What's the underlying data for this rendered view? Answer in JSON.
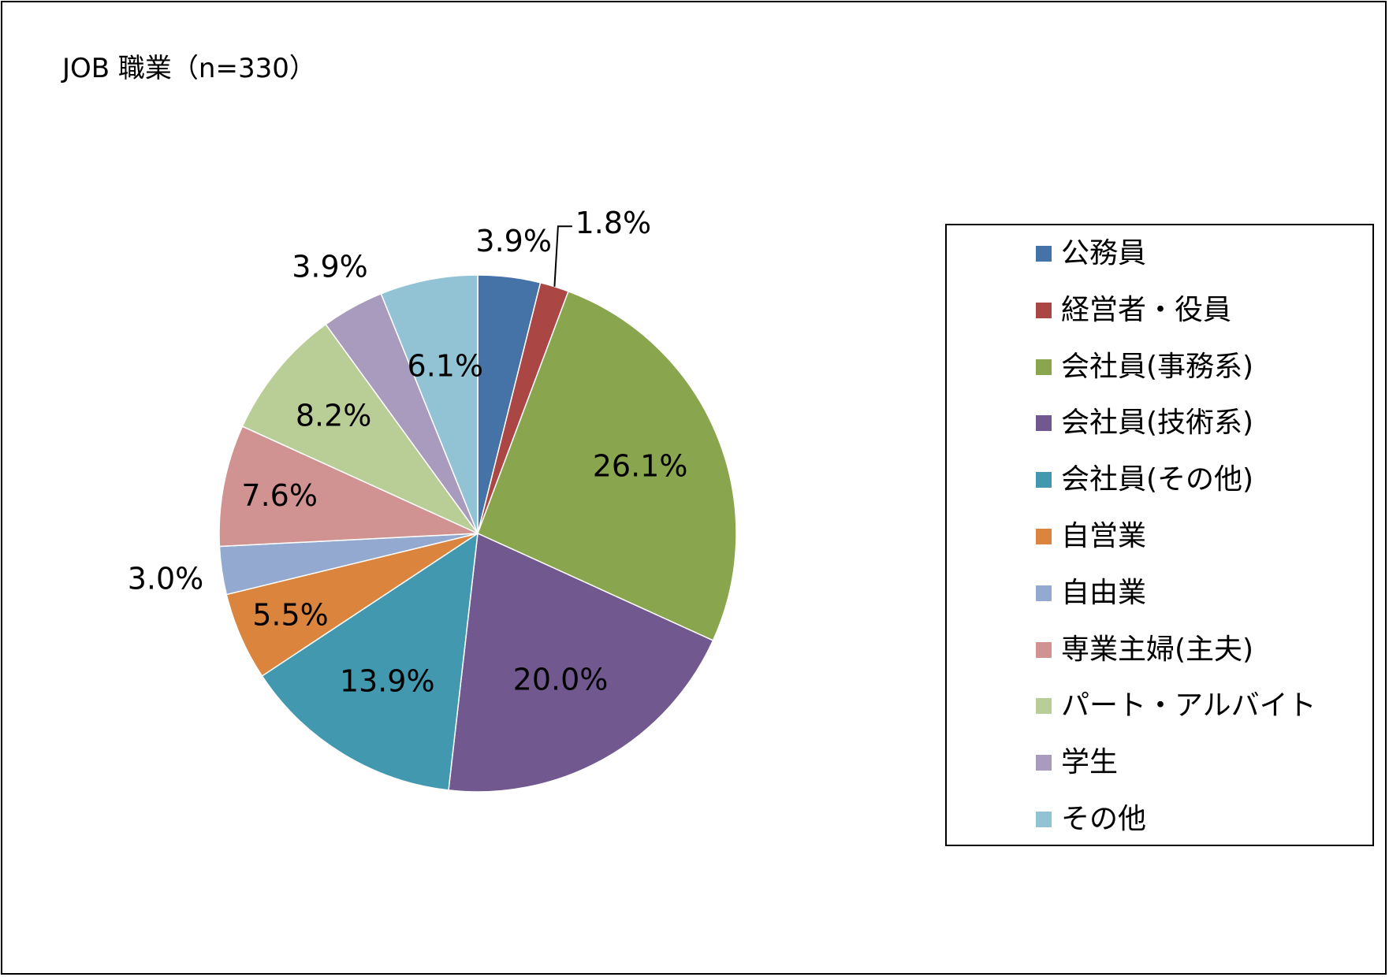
{
  "title": "JOB 職業（n=330）",
  "chart_data": {
    "type": "pie",
    "title": "JOB 職業（n=330）",
    "n": 330,
    "legend_position": "right",
    "categories": [
      "公務員",
      "経営者・役員",
      "会社員(事務系)",
      "会社員(技術系)",
      "会社員(その他)",
      "自営業",
      "自由業",
      "専業主婦(主夫)",
      "パート・アルバイト",
      "学生",
      "その他"
    ],
    "values": [
      3.9,
      1.8,
      26.1,
      20.0,
      13.9,
      5.5,
      3.0,
      7.6,
      8.2,
      3.9,
      6.1
    ],
    "data_labels": [
      "3.9%",
      "1.8%",
      "26.1%",
      "20.0%",
      "13.9%",
      "5.5%",
      "3.0%",
      "7.6%",
      "8.2%",
      "3.9%",
      "6.1%"
    ],
    "colors": [
      "#4572A7",
      "#AA4643",
      "#89A54E",
      "#71588F",
      "#4198AF",
      "#DB843D",
      "#93A9CF",
      "#D19392",
      "#B9CD96",
      "#A99BBD",
      "#92C3D4"
    ]
  }
}
